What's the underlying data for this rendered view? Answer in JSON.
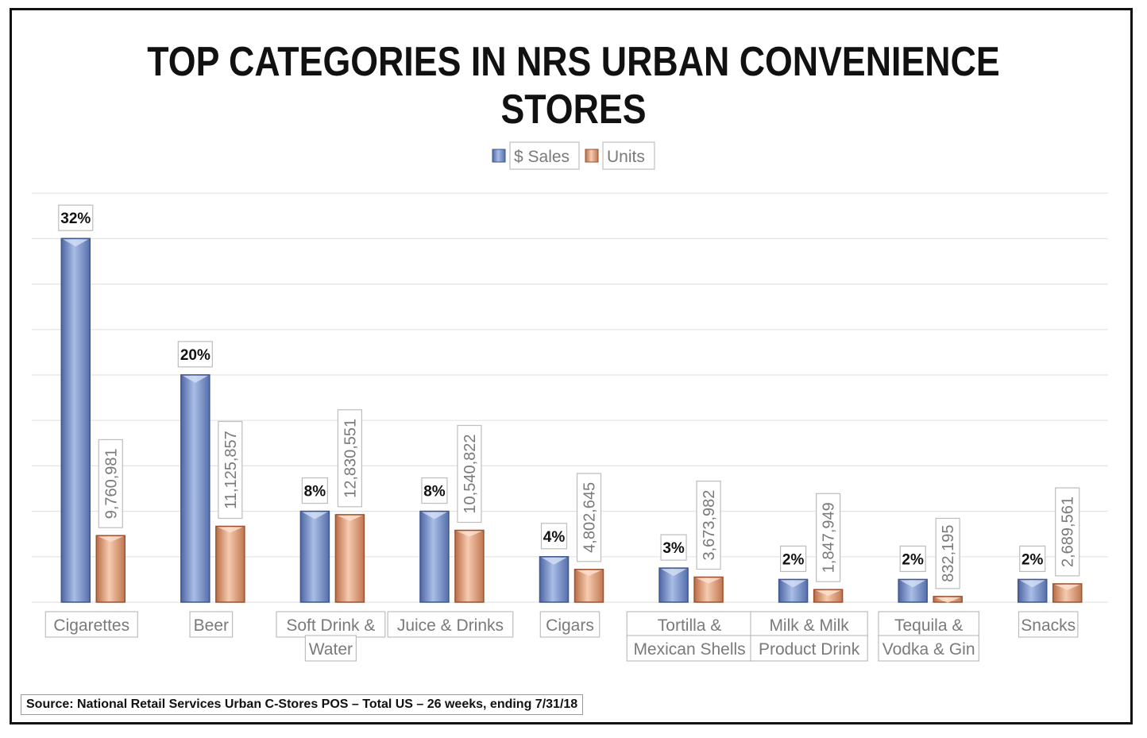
{
  "title": "TOP CATEGORIES IN NRS URBAN CONVENIENCE STORES",
  "source": "Source: National Retail Services Urban C-Stores POS – Total US – 26 weeks, ending 7/31/18",
  "colors": {
    "sales": "#7d95c9",
    "units": "#e7a37f",
    "grid": "#e3e3e3"
  },
  "legend": [
    {
      "label": "$ Sales",
      "color": "#7d95c9"
    },
    {
      "label": "Units",
      "color": "#e7a37f"
    }
  ],
  "chart_data": {
    "type": "bar",
    "title": "TOP CATEGORIES IN NRS URBAN CONVENIENCE STORES",
    "legend_position": "top",
    "grid": true,
    "categories": [
      [
        "Cigarettes"
      ],
      [
        "Beer"
      ],
      [
        "Soft Drink &",
        "Water"
      ],
      [
        "Juice & Drinks"
      ],
      [
        "Cigars"
      ],
      [
        "Tortilla &",
        "Mexican Shells"
      ],
      [
        "Milk & Milk",
        "Product Drink"
      ],
      [
        "Tequila &",
        "Vodka & Gin"
      ],
      [
        "Snacks"
      ]
    ],
    "series": [
      {
        "name": "$ Sales",
        "values": [
          32,
          20,
          8,
          8,
          4,
          3,
          2,
          2,
          2
        ],
        "labels": [
          "32%",
          "20%",
          "8%",
          "8%",
          "4%",
          "3%",
          "2%",
          "2%",
          "2%"
        ]
      },
      {
        "name": "Units",
        "values": [
          9760981,
          11125857,
          12830551,
          10540822,
          4802645,
          3673982,
          1847949,
          832195,
          2689561
        ],
        "labels": [
          "9,760,981",
          "11,125,857",
          "12,830,551",
          "10,540,822",
          "4,802,645",
          "3,673,982",
          "1,847,949",
          "832,195",
          "2,689,561"
        ]
      }
    ]
  }
}
